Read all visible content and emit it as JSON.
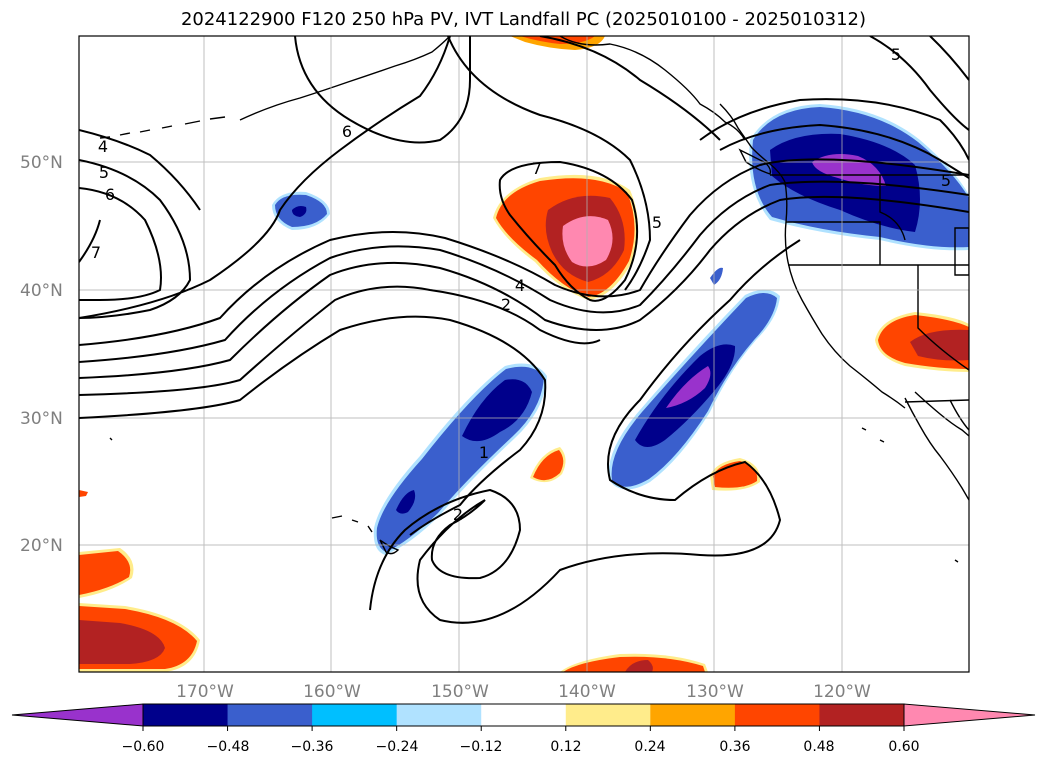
{
  "title": "2024122900 F120 250 hPa PV, IVT Landfall PC (2025010100 - 2025010312)",
  "map": {
    "lat_labels": [
      "50°N",
      "40°N",
      "30°N",
      "20°N"
    ],
    "lon_labels": [
      "170°W",
      "160°W",
      "150°W",
      "140°W",
      "130°W",
      "120°W"
    ],
    "grid": true,
    "contour_labels": [
      "4",
      "5",
      "6",
      "7",
      "6",
      "7",
      "5",
      "4",
      "2",
      "5",
      "5",
      "1",
      "2"
    ]
  },
  "colorbar": {
    "orientation": "horizontal",
    "extend": "both",
    "ticks": [
      "−0.60",
      "−0.48",
      "−0.36",
      "−0.24",
      "−0.12",
      "0.12",
      "0.24",
      "0.36",
      "0.48",
      "0.60"
    ],
    "colors": [
      "#9932cc",
      "#00008b",
      "#3a5fcd",
      "#00bfff",
      "#b0e2ff",
      "#ffffff",
      "#ffec8b",
      "#ffa500",
      "#ff4500",
      "#b22222",
      "#ff88b0"
    ]
  },
  "colors": {
    "neg_strong": "#9932cc",
    "neg_2": "#00008b",
    "neg_3": "#3a5fcd",
    "neg_4": "#00bfff",
    "neg_5": "#b0e2ff",
    "pos_1": "#ffec8b",
    "pos_2": "#ffa500",
    "pos_3": "#ff4500",
    "pos_4": "#b22222",
    "pos_5": "#ff88b0"
  }
}
